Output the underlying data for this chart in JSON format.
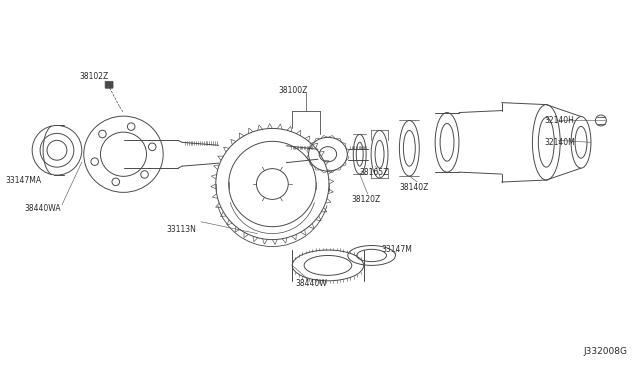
{
  "bg_color": "#ffffff",
  "line_color": "#4a4a4a",
  "label_color": "#2a2a2a",
  "fig_width": 6.4,
  "fig_height": 3.72,
  "dpi": 100,
  "watermark": "J332008G",
  "xlim": [
    0,
    6.4
  ],
  "ylim": [
    0,
    3.72
  ]
}
